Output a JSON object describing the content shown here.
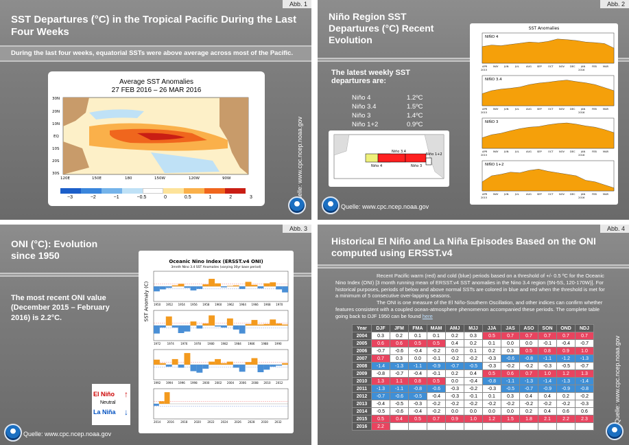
{
  "slide1": {
    "abb": "Abb. 1",
    "title": "SST Departures (°C) in the Tropical Pacific During the Last Four Weeks",
    "subtitle": "During the last four weeks, equatorial SSTs were above average across most of the Pacific.",
    "map_title_1": "Average SST Anomalies",
    "map_title_2": "27 FEB 2016 – 26 MAR 2016",
    "lat_labels": [
      "30N",
      "20N",
      "10N",
      "EQ",
      "10S",
      "20S",
      "30S"
    ],
    "lon_labels": [
      "120E",
      "150E",
      "180",
      "150W",
      "120W",
      "90W"
    ],
    "colorbar_labels": [
      "−3",
      "−2",
      "−1",
      "−0.5",
      "0",
      "0.5",
      "1",
      "2",
      "3"
    ],
    "colorbar_colors": [
      "#1c5fc9",
      "#3a86dc",
      "#74b3ea",
      "#bfe1f6",
      "#ffffff",
      "#fde39a",
      "#fab04a",
      "#f0661d",
      "#c91e14"
    ],
    "quelle": "Quelle: www.cpc.ncep.noaa.gov"
  },
  "slide2": {
    "abb": "Abb. 2",
    "title": "Niño Region SST Departures (°C) Recent Evolution",
    "intro": "The latest weekly SST departures are:",
    "regions": [
      {
        "name": "Niño 4",
        "value": "1.2ºC"
      },
      {
        "name": "Niño 3.4",
        "value": "1.5ºC"
      },
      {
        "name": "Niño 3",
        "value": "1.4ºC"
      },
      {
        "name": "Niño 1+2",
        "value": "0.9ºC"
      }
    ],
    "map_box_labels": [
      "Niño 4",
      "Niño 3.4",
      "Niño 3",
      "Niño 1+2"
    ],
    "chart_title": "SST Anomalies",
    "panel_labels": [
      "NIÑO 4",
      "NIÑO 3.4",
      "NIÑO 3",
      "NIÑO 1+2"
    ],
    "months": [
      "APR",
      "MAY",
      "JUN",
      "JUL",
      "AUG",
      "SEP",
      "OCT",
      "NOV",
      "DEC",
      "JAN",
      "FEB",
      "MAR"
    ],
    "year_start": "2015",
    "year_end": "2016",
    "fill_color": "#f5a00a",
    "quelle": "Quelle: www.cpc.ncep.noaa.gov"
  },
  "slide3": {
    "abb": "Abb. 3",
    "title": "ONI (°C): Evolution since 1950",
    "text": "The most recent ONI value (December 2015 – February 2016) is 2.2°C.",
    "chart_title": "Oceanic Nino Index (ERSST.v4 ONI)",
    "chart_subtitle": "3mnth Nino 3.4 SST Anomalies (varying 30yr base period)",
    "ylabel": "SST Anomaly (C)",
    "panel1_years": [
      "1950",
      "1952",
      "1954",
      "1956",
      "1958",
      "1960",
      "1962",
      "1964",
      "1966",
      "1968",
      "1970"
    ],
    "panel2_years": [
      "1972",
      "1974",
      "1976",
      "1978",
      "1980",
      "1982",
      "1984",
      "1986",
      "1988",
      "1990"
    ],
    "panel3_years": [
      "1992",
      "1994",
      "1996",
      "1998",
      "2000",
      "2002",
      "2004",
      "2006",
      "2008",
      "2010",
      "2012"
    ],
    "panel4_years": [
      "2014",
      "2016",
      "2018",
      "2020",
      "2022",
      "2024",
      "2026",
      "2028",
      "2030",
      "2032"
    ],
    "legend_el": "El Niño",
    "legend_neutral": "Neutral",
    "legend_la": "La Niña",
    "quelle": "Quelle: www.cpc.ncep.noaa.gov"
  },
  "slide4": {
    "abb": "Abb. 4",
    "title": "Historical El Niño and La Niña Episodes Based on the ONI computed using ERSST.v4",
    "para1": "Recent Pacific warm (red) and cold (blue) periods based on a threshold of +/- 0.5 ºC for the Oceanic Nino Index (ONI) [3 month running mean of ERSST.v4 SST anomalies in the Nino 3.4 region (5N-5S, 120-170W)]. For historical purposes, periods of below and above normal SSTs are colored in blue and red when the threshold is met for a minimum of 5 consecutive over-lapping seasons.",
    "para2_a": "The ONI is one measure of the El Niño-Southern Oscillation, and other indices can confirm whether features consistent with a coupled ocean-atmosphere phenomenon accompanied these periods. The complete table going back to DJF 1950 can be found ",
    "para2_link": "here",
    "headers": [
      "Year",
      "DJF",
      "JFM",
      "FMA",
      "MAM",
      "AMJ",
      "MJJ",
      "JJA",
      "JAS",
      "ASO",
      "SON",
      "OND",
      "NDJ"
    ],
    "rows": [
      {
        "year": "2004",
        "values": [
          "0.3",
          "0.2",
          "0.1",
          "0.1",
          "0.2",
          "0.3",
          "0.5",
          "0.7",
          "0.7",
          "0.7",
          "0.7",
          "0.7"
        ],
        "colors": [
          "n",
          "n",
          "n",
          "n",
          "n",
          "n",
          "w",
          "w",
          "w",
          "w",
          "w",
          "w"
        ]
      },
      {
        "year": "2005",
        "values": [
          "0.6",
          "0.6",
          "0.5",
          "0.5",
          "0.4",
          "0.2",
          "0.1",
          "0.0",
          "0.0",
          "-0.1",
          "-0.4",
          "-0.7"
        ],
        "colors": [
          "w",
          "w",
          "w",
          "w",
          "n",
          "n",
          "n",
          "n",
          "n",
          "n",
          "n",
          "n"
        ]
      },
      {
        "year": "2006",
        "values": [
          "-0.7",
          "-0.6",
          "-0.4",
          "-0.2",
          "0.0",
          "0.1",
          "0.2",
          "0.3",
          "0.5",
          "0.8",
          "0.9",
          "1.0"
        ],
        "colors": [
          "n",
          "n",
          "n",
          "n",
          "n",
          "n",
          "n",
          "n",
          "w",
          "w",
          "w",
          "w"
        ]
      },
      {
        "year": "2007",
        "values": [
          "0.7",
          "0.3",
          "0.0",
          "-0.1",
          "-0.2",
          "-0.2",
          "-0.3",
          "-0.6",
          "-0.8",
          "-1.1",
          "-1.2",
          "-1.3"
        ],
        "colors": [
          "w",
          "n",
          "n",
          "n",
          "n",
          "n",
          "n",
          "c",
          "c",
          "c",
          "c",
          "c"
        ]
      },
      {
        "year": "2008",
        "values": [
          "-1.4",
          "-1.3",
          "-1.1",
          "-0.9",
          "-0.7",
          "-0.5",
          "-0.3",
          "-0.2",
          "-0.2",
          "-0.3",
          "-0.5",
          "-0.7"
        ],
        "colors": [
          "c",
          "c",
          "c",
          "c",
          "c",
          "c",
          "n",
          "n",
          "n",
          "n",
          "n",
          "n"
        ]
      },
      {
        "year": "2009",
        "values": [
          "-0.8",
          "-0.7",
          "-0.4",
          "-0.1",
          "0.2",
          "0.4",
          "0.5",
          "0.6",
          "0.7",
          "1.0",
          "1.2",
          "1.3"
        ],
        "colors": [
          "n",
          "n",
          "n",
          "n",
          "n",
          "n",
          "w",
          "w",
          "w",
          "w",
          "w",
          "w"
        ]
      },
      {
        "year": "2010",
        "values": [
          "1.3",
          "1.1",
          "0.8",
          "0.5",
          "0.0",
          "-0.4",
          "-0.8",
          "-1.1",
          "-1.3",
          "-1.4",
          "-1.3",
          "-1.4"
        ],
        "colors": [
          "w",
          "w",
          "w",
          "w",
          "n",
          "n",
          "c",
          "c",
          "c",
          "c",
          "c",
          "c"
        ]
      },
      {
        "year": "2011",
        "values": [
          "-1.3",
          "-1.1",
          "-0.8",
          "-0.6",
          "-0.3",
          "-0.2",
          "-0.3",
          "-0.5",
          "-0.7",
          "-0.9",
          "-0.9",
          "-0.8"
        ],
        "colors": [
          "c",
          "c",
          "c",
          "c",
          "n",
          "n",
          "n",
          "c",
          "c",
          "c",
          "c",
          "c"
        ]
      },
      {
        "year": "2012",
        "values": [
          "-0.7",
          "-0.6",
          "-0.5",
          "-0.4",
          "-0.3",
          "-0.1",
          "0.1",
          "0.3",
          "0.4",
          "0.4",
          "0.2",
          "-0.2"
        ],
        "colors": [
          "c",
          "c",
          "c",
          "n",
          "n",
          "n",
          "n",
          "n",
          "n",
          "n",
          "n",
          "n"
        ]
      },
      {
        "year": "2013",
        "values": [
          "-0.4",
          "-0.5",
          "-0.3",
          "-0.2",
          "-0.2",
          "-0.2",
          "-0.2",
          "-0.2",
          "-0.2",
          "-0.2",
          "-0.2",
          "-0.3"
        ],
        "colors": [
          "n",
          "n",
          "n",
          "n",
          "n",
          "n",
          "n",
          "n",
          "n",
          "n",
          "n",
          "n"
        ]
      },
      {
        "year": "2014",
        "values": [
          "-0.5",
          "-0.6",
          "-0.4",
          "-0.2",
          "0.0",
          "0.0",
          "0.0",
          "0.0",
          "0.2",
          "0.4",
          "0.6",
          "0.6"
        ],
        "colors": [
          "n",
          "n",
          "n",
          "n",
          "n",
          "n",
          "n",
          "n",
          "n",
          "n",
          "n",
          "n"
        ]
      },
      {
        "year": "2015",
        "values": [
          "0.5",
          "0.4",
          "0.5",
          "0.7",
          "0.9",
          "1.0",
          "1.2",
          "1.5",
          "1.8",
          "2.1",
          "2.2",
          "2.3"
        ],
        "colors": [
          "w",
          "w",
          "w",
          "w",
          "w",
          "w",
          "w",
          "w",
          "w",
          "w",
          "w",
          "w"
        ]
      },
      {
        "year": "2016",
        "values": [
          "2.2",
          "",
          "",
          "",
          "",
          "",
          "",
          "",
          "",
          "",
          "",
          ""
        ],
        "colors": [
          "w",
          "e",
          "e",
          "e",
          "e",
          "e",
          "e",
          "e",
          "e",
          "e",
          "e",
          "e"
        ]
      }
    ],
    "quelle": "Quelle: www.cpc.ncep.noaa.gov"
  }
}
